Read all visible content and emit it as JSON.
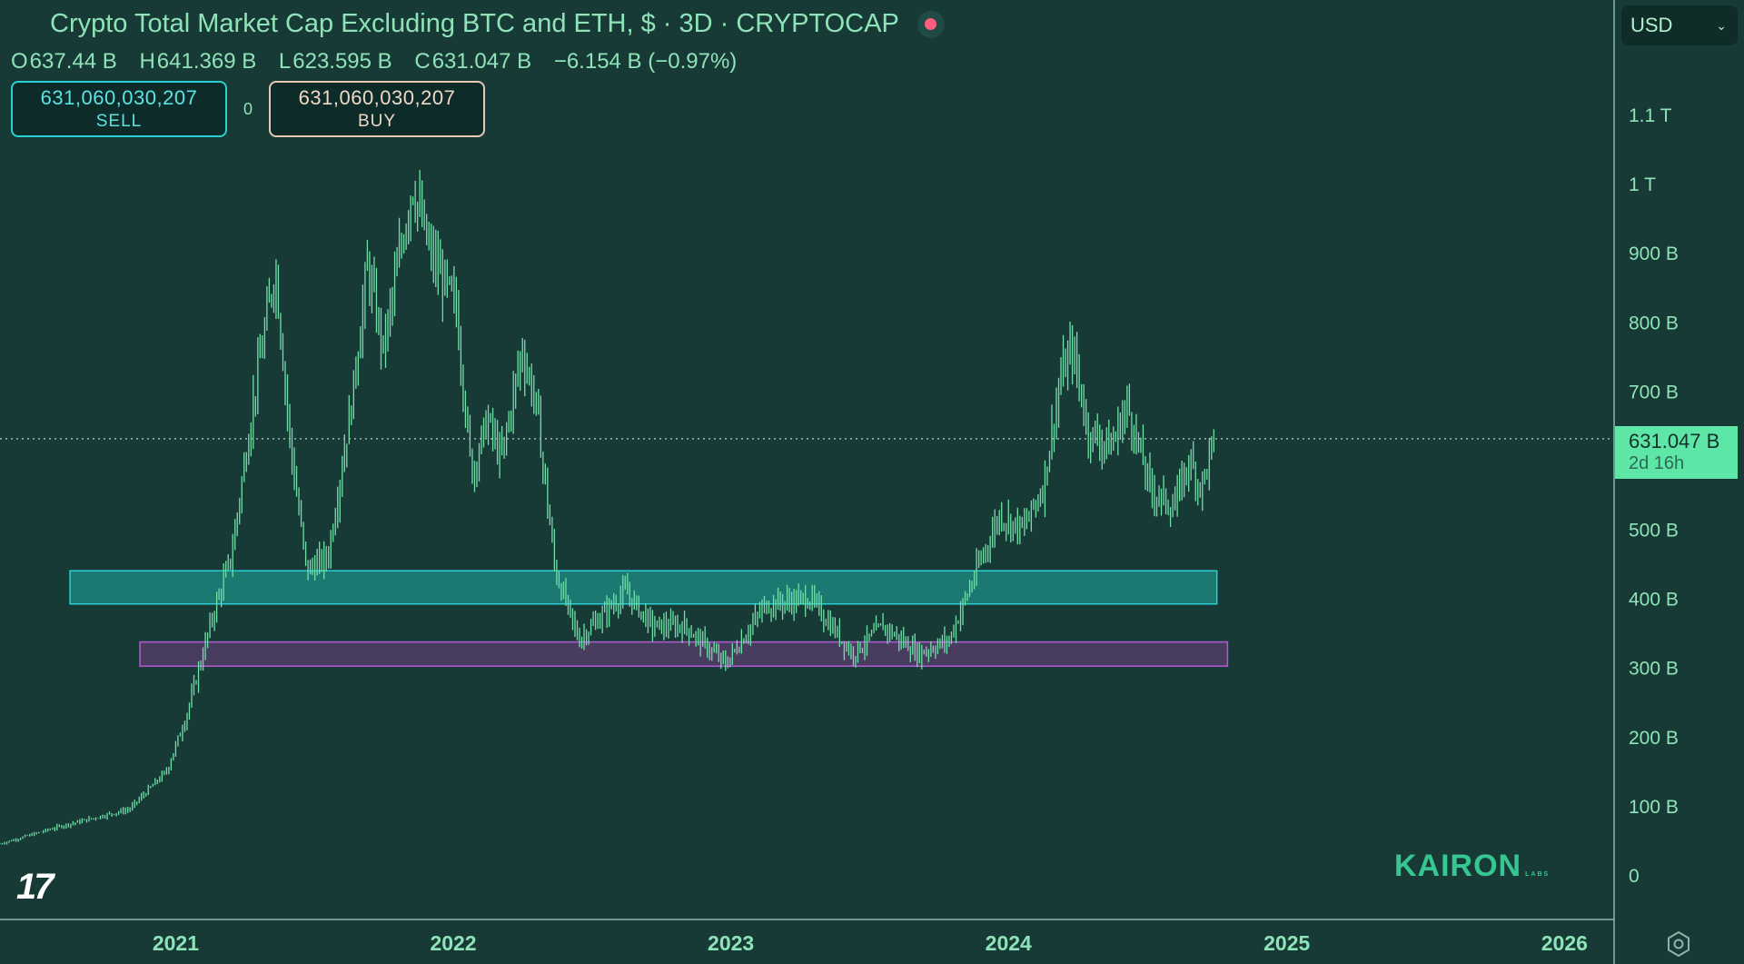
{
  "header": {
    "title": "Crypto Total Market Cap Excluding BTC and ETH, $ · 3D · CRYPTOCAP",
    "ohlc": [
      {
        "label": "O",
        "value": "637.44 B"
      },
      {
        "label": "H",
        "value": "641.369 B"
      },
      {
        "label": "L",
        "value": "623.595 B"
      },
      {
        "label": "C",
        "value": "631.047 B"
      }
    ],
    "change": "−6.154 B (−0.97%)"
  },
  "trade": {
    "sell_price": "631,060,030,207",
    "sell_label": "SELL",
    "buy_price": "631,060,030,207",
    "buy_label": "BUY",
    "spread": "0"
  },
  "currency": {
    "selected": "USD"
  },
  "price_tag": {
    "value": "631.047 B",
    "countdown": "2d 16h"
  },
  "watermark": {
    "main": "KAIRON",
    "sub": "LABS"
  },
  "colors": {
    "background": "#173a36",
    "candle": "#6fe0a8",
    "support_zone_cyan": "#1e8f85",
    "support_zone_purple": "#5a3f6e",
    "price_tag": "#5ee6a6",
    "sell": "#27d1d5",
    "buy": "#e7c9b1"
  },
  "icons": {
    "live": "live-dot-icon",
    "settings": "settings-icon",
    "tradingview": "tradingview-logo-icon"
  },
  "chart_data": {
    "type": "candlestick",
    "title": "",
    "y_unit": "USD (billions)",
    "ylim": [
      0,
      1100
    ],
    "y_ticks": [
      {
        "value": 0,
        "label": "0"
      },
      {
        "value": 100,
        "label": "100 B"
      },
      {
        "value": 200,
        "label": "200 B"
      },
      {
        "value": 300,
        "label": "300 B"
      },
      {
        "value": 400,
        "label": "400 B"
      },
      {
        "value": 500,
        "label": "500 B"
      },
      {
        "value": 700,
        "label": "700 B"
      },
      {
        "value": 800,
        "label": "800 B"
      },
      {
        "value": 900,
        "label": "900 B"
      },
      {
        "value": 1000,
        "label": "1 T"
      },
      {
        "value": 1100,
        "label": "1.1 T"
      }
    ],
    "x_ticks": [
      "2021",
      "2022",
      "2023",
      "2024",
      "2025",
      "2026"
    ],
    "x_range": [
      "2020-05-15",
      "2026-02-15"
    ],
    "last_price": 631.047,
    "series": [
      {
        "points": [
          [
            "2020-05-15",
            45
          ],
          [
            "2020-08-01",
            70
          ],
          [
            "2020-11-01",
            95
          ],
          [
            "2020-12-20",
            150
          ],
          [
            "2021-01-15",
            230
          ],
          [
            "2021-02-20",
            380
          ],
          [
            "2021-03-15",
            460
          ],
          [
            "2021-04-15",
            700
          ],
          [
            "2021-05-12",
            880
          ],
          [
            "2021-06-01",
            620
          ],
          [
            "2021-06-22",
            440
          ],
          [
            "2021-07-20",
            460
          ],
          [
            "2021-08-20",
            680
          ],
          [
            "2021-09-10",
            880
          ],
          [
            "2021-10-01",
            760
          ],
          [
            "2021-11-08",
            1000
          ],
          [
            "2021-12-01",
            900
          ],
          [
            "2022-01-05",
            820
          ],
          [
            "2022-01-25",
            580
          ],
          [
            "2022-02-15",
            660
          ],
          [
            "2022-03-05",
            600
          ],
          [
            "2022-04-01",
            760
          ],
          [
            "2022-04-20",
            680
          ],
          [
            "2022-05-15",
            440
          ],
          [
            "2022-06-15",
            340
          ],
          [
            "2022-08-15",
            410
          ],
          [
            "2022-09-20",
            360
          ],
          [
            "2022-11-01",
            360
          ],
          [
            "2022-12-25",
            305
          ],
          [
            "2023-02-15",
            390
          ],
          [
            "2023-04-15",
            400
          ],
          [
            "2023-06-10",
            320
          ],
          [
            "2023-07-20",
            360
          ],
          [
            "2023-09-05",
            320
          ],
          [
            "2023-10-15",
            340
          ],
          [
            "2023-11-20",
            440
          ],
          [
            "2023-12-20",
            520
          ],
          [
            "2024-01-20",
            500
          ],
          [
            "2024-02-15",
            560
          ],
          [
            "2024-03-10",
            720
          ],
          [
            "2024-03-25",
            760
          ],
          [
            "2024-04-15",
            640
          ],
          [
            "2024-05-15",
            620
          ],
          [
            "2024-06-05",
            680
          ],
          [
            "2024-07-05",
            560
          ],
          [
            "2024-08-05",
            530
          ],
          [
            "2024-08-25",
            600
          ],
          [
            "2024-09-10",
            560
          ],
          [
            "2024-09-28",
            631
          ]
        ]
      }
    ],
    "zones": [
      {
        "from": "2020-08-15",
        "to": "2024-10-01",
        "low": 392,
        "high": 440,
        "color": "cyan"
      },
      {
        "from": "2020-11-15",
        "to": "2024-10-15",
        "low": 302,
        "high": 337,
        "color": "purple"
      }
    ]
  }
}
